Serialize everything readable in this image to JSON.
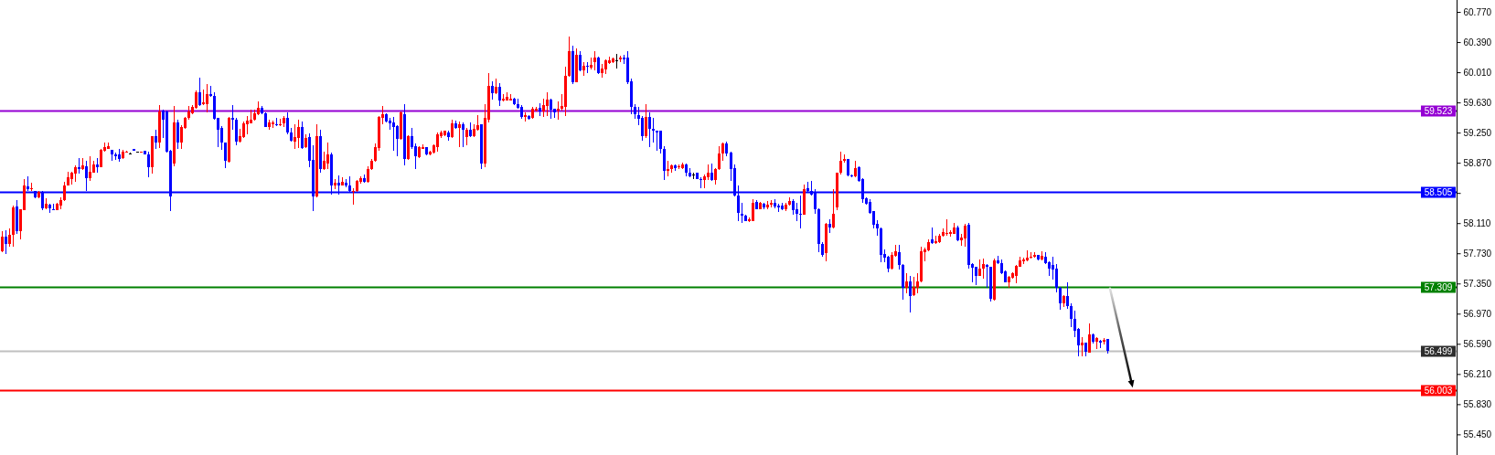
{
  "chart_data": {
    "type": "candlestick",
    "tick_labels": "y",
    "categories": [
      null,
      null,
      null,
      null,
      null,
      null,
      null,
      null,
      null,
      null,
      null,
      null,
      null,
      null,
      null,
      null,
      null,
      null,
      null,
      null,
      null,
      null,
      null,
      null,
      null,
      null,
      null,
      null,
      null,
      null,
      null,
      null,
      null,
      null,
      null,
      null,
      null,
      null,
      null,
      null,
      null,
      null,
      null,
      null,
      null,
      null,
      null,
      null,
      null,
      null,
      null,
      null,
      null,
      null,
      null,
      null,
      null,
      null,
      null,
      null,
      null,
      null,
      null,
      null,
      null,
      null,
      null,
      null,
      null,
      null,
      null,
      null,
      null,
      null,
      null,
      null,
      null,
      null,
      null,
      null,
      null,
      null,
      null,
      null,
      null,
      null,
      null,
      null,
      null,
      null,
      null,
      null,
      null,
      null,
      null,
      null,
      null,
      null,
      null,
      null,
      null,
      null,
      null,
      null,
      null,
      null,
      null,
      null,
      null,
      null,
      null,
      null,
      null,
      null,
      null,
      null,
      null,
      null,
      null,
      null,
      null,
      null,
      null,
      null,
      null,
      null,
      null,
      null,
      null,
      null,
      null,
      null,
      null,
      null,
      null,
      null,
      null,
      null,
      null,
      null,
      null,
      null,
      null,
      null,
      null,
      null,
      null,
      null,
      null,
      null,
      null,
      null,
      null,
      null,
      null,
      null,
      null,
      null,
      null,
      null,
      null,
      null,
      null,
      null,
      null,
      null,
      null,
      null,
      null,
      null,
      null,
      null,
      null,
      null,
      null,
      null,
      null,
      null,
      null,
      null,
      null,
      null,
      null,
      null,
      null,
      null,
      null,
      null,
      null,
      null,
      null,
      null,
      null,
      null,
      null,
      null,
      null,
      null,
      null,
      null,
      null,
      null,
      null,
      null,
      null,
      null,
      null,
      null,
      null,
      null,
      null,
      null,
      null,
      null,
      null,
      null,
      null,
      null,
      null,
      null,
      null,
      null,
      null,
      null,
      null,
      null,
      null,
      null,
      null,
      null,
      null,
      null,
      null,
      null,
      null,
      null,
      null,
      null,
      null,
      null,
      null,
      null,
      null,
      null,
      null,
      null,
      null,
      null,
      null,
      null,
      null,
      null,
      null,
      null,
      null,
      null,
      null,
      null,
      null,
      null,
      null,
      null,
      null,
      null,
      null,
      null,
      null,
      null,
      null,
      null,
      null,
      null,
      null,
      null,
      null,
      null,
      null,
      null,
      null,
      null,
      null,
      null,
      null,
      null,
      null,
      null,
      null,
      null,
      null,
      null,
      null,
      null,
      null,
      null,
      null,
      null,
      null,
      null,
      null,
      null,
      null,
      null,
      null,
      null,
      null,
      null,
      null,
      null,
      null,
      null,
      null,
      null,
      null,
      null,
      null,
      null,
      null,
      null,
      null,
      null,
      null,
      null,
      null,
      null,
      null,
      null,
      null,
      null,
      null,
      null,
      null,
      null,
      null,
      null,
      null,
      null,
      null,
      null,
      null,
      null,
      null,
      null,
      null,
      null,
      null,
      null,
      null,
      null,
      null,
      null,
      null,
      null,
      null,
      null,
      null,
      null,
      null,
      null,
      null,
      null,
      null,
      null,
      null,
      null,
      null,
      null,
      null,
      null,
      null,
      null,
      null,
      null,
      null,
      null,
      null,
      null,
      null,
      null,
      null,
      null,
      null,
      null,
      null,
      null,
      null,
      null,
      null,
      null,
      null,
      null,
      null,
      null,
      null,
      null,
      null,
      null,
      null,
      null
    ],
    "ohlc": [
      [
        57.76,
        58.01,
        57.74,
        57.94
      ],
      [
        57.94,
        58.02,
        57.72,
        57.85
      ],
      [
        57.85,
        58.04,
        57.81,
        57.96
      ],
      [
        57.96,
        58.33,
        57.81,
        58.31
      ],
      [
        58.32,
        58.4,
        57.97,
        58.01
      ],
      [
        58.01,
        58.29,
        57.91,
        58.28
      ],
      [
        58.27,
        58.66,
        58.27,
        58.58
      ],
      [
        58.57,
        58.7,
        58.52,
        58.54
      ],
      [
        58.54,
        58.62,
        58.52,
        58.55
      ],
      [
        58.52,
        58.52,
        58.42,
        58.44
      ],
      [
        58.43,
        58.52,
        58.42,
        58.5
      ],
      [
        58.5,
        58.51,
        58.27,
        58.3
      ],
      [
        58.3,
        58.42,
        58.29,
        58.35
      ],
      [
        58.34,
        58.35,
        58.24,
        58.3
      ],
      [
        58.29,
        58.35,
        58.27,
        58.27
      ],
      [
        58.27,
        58.36,
        58.27,
        58.35
      ],
      [
        58.33,
        58.43,
        58.28,
        58.4
      ],
      [
        58.4,
        58.63,
        58.39,
        58.59
      ],
      [
        58.59,
        58.76,
        58.58,
        58.69
      ],
      [
        58.67,
        58.76,
        58.6,
        58.75
      ],
      [
        58.73,
        58.84,
        58.63,
        58.82
      ],
      [
        58.82,
        58.93,
        58.73,
        58.79
      ],
      [
        58.79,
        58.93,
        58.78,
        58.84
      ],
      [
        58.83,
        58.9,
        58.51,
        58.68
      ],
      [
        58.68,
        58.95,
        58.64,
        58.76
      ],
      [
        58.75,
        58.89,
        58.74,
        58.85
      ],
      [
        58.85,
        58.93,
        58.75,
        58.82
      ],
      [
        58.82,
        59.04,
        58.81,
        59.03
      ],
      [
        59.02,
        59.13,
        59.01,
        59.07
      ],
      [
        59.05,
        59.12,
        59.04,
        59.08
      ],
      [
        59.03,
        59.03,
        58.9,
        58.97
      ],
      [
        58.97,
        59.0,
        58.91,
        58.95
      ],
      [
        58.97,
        59.04,
        58.88,
        58.92
      ],
      [
        58.93,
        59.03,
        58.92,
        59.01
      ],
      [
        59.0,
        59.02,
        59.0,
        59.01
      ],
      [
        58.99,
        59.0,
        58.98,
        58.99
      ],
      [
        59.04,
        59.04,
        59.02,
        59.02
      ],
      [
        59.01,
        59.01,
        59.0,
        59.01
      ],
      [
        59.0,
        59.01,
        59.0,
        59.01
      ],
      [
        59.02,
        59.02,
        58.98,
        58.98
      ],
      [
        58.98,
        59.01,
        58.69,
        58.82
      ],
      [
        58.81,
        59.21,
        58.73,
        59.2
      ],
      [
        59.2,
        59.29,
        59.04,
        59.13
      ],
      [
        59.12,
        59.6,
        59.06,
        59.52
      ],
      [
        59.53,
        59.54,
        59.18,
        59.41
      ],
      [
        59.52,
        59.53,
        59.0,
        59.01
      ],
      [
        59.02,
        59.03,
        58.26,
        58.45
      ],
      [
        58.86,
        59.59,
        58.83,
        59.38
      ],
      [
        59.38,
        59.41,
        59.04,
        59.13
      ],
      [
        59.13,
        59.34,
        59.04,
        59.32
      ],
      [
        59.31,
        59.45,
        59.3,
        59.44
      ],
      [
        59.43,
        59.58,
        59.41,
        59.52
      ],
      [
        59.49,
        59.6,
        59.48,
        59.57
      ],
      [
        59.56,
        59.78,
        59.55,
        59.76
      ],
      [
        59.76,
        59.94,
        59.59,
        59.6
      ],
      [
        59.61,
        59.79,
        59.6,
        59.63
      ],
      [
        59.61,
        59.86,
        59.51,
        59.73
      ],
      [
        59.73,
        59.84,
        59.7,
        59.71
      ],
      [
        59.71,
        59.76,
        59.41,
        59.42
      ],
      [
        59.43,
        59.44,
        59.07,
        59.29
      ],
      [
        59.31,
        59.33,
        59.03,
        59.12
      ],
      [
        59.13,
        59.13,
        58.8,
        58.9
      ],
      [
        58.88,
        59.45,
        58.87,
        59.43
      ],
      [
        59.44,
        59.6,
        59.29,
        59.41
      ],
      [
        59.41,
        59.44,
        59.09,
        59.14
      ],
      [
        59.14,
        59.3,
        59.13,
        59.2
      ],
      [
        59.19,
        59.39,
        59.18,
        59.37
      ],
      [
        59.36,
        59.46,
        59.23,
        59.4
      ],
      [
        59.37,
        59.54,
        59.37,
        59.41
      ],
      [
        59.41,
        59.54,
        59.4,
        59.49
      ],
      [
        59.48,
        59.64,
        59.47,
        59.56
      ],
      [
        59.56,
        59.58,
        59.48,
        59.49
      ],
      [
        59.49,
        59.5,
        59.32,
        59.32
      ],
      [
        59.32,
        59.41,
        59.29,
        59.38
      ],
      [
        59.36,
        59.4,
        59.31,
        59.38
      ],
      [
        59.36,
        59.43,
        59.33,
        59.34
      ],
      [
        59.34,
        59.42,
        59.33,
        59.36
      ],
      [
        59.37,
        59.46,
        59.32,
        59.43
      ],
      [
        59.43,
        59.51,
        59.23,
        59.25
      ],
      [
        59.25,
        59.31,
        59.14,
        59.15
      ],
      [
        59.14,
        59.35,
        59.05,
        59.19
      ],
      [
        59.18,
        59.41,
        59.06,
        59.32
      ],
      [
        59.32,
        59.39,
        59.05,
        59.06
      ],
      [
        59.07,
        59.23,
        59.06,
        59.18
      ],
      [
        59.19,
        59.24,
        58.82,
        58.9
      ],
      [
        58.91,
        59.09,
        58.26,
        58.45
      ],
      [
        58.45,
        59.36,
        58.43,
        59.2
      ],
      [
        59.2,
        59.29,
        58.75,
        58.79
      ],
      [
        58.79,
        59.01,
        58.78,
        58.89
      ],
      [
        58.86,
        59.13,
        58.79,
        58.98
      ],
      [
        58.98,
        59.0,
        58.47,
        58.59
      ],
      [
        58.59,
        58.67,
        58.54,
        58.62
      ],
      [
        58.62,
        58.71,
        58.47,
        58.58
      ],
      [
        58.59,
        58.69,
        58.58,
        58.63
      ],
      [
        58.62,
        58.67,
        58.56,
        58.58
      ],
      [
        58.58,
        58.7,
        58.5,
        58.51
      ],
      [
        58.5,
        58.55,
        58.34,
        58.52
      ],
      [
        58.51,
        58.65,
        58.5,
        58.64
      ],
      [
        58.63,
        58.7,
        58.61,
        58.68
      ],
      [
        58.68,
        58.72,
        58.62,
        58.63
      ],
      [
        58.63,
        58.83,
        58.62,
        58.79
      ],
      [
        58.79,
        58.92,
        58.78,
        58.9
      ],
      [
        58.89,
        59.11,
        58.88,
        59.07
      ],
      [
        59.06,
        59.46,
        59.02,
        59.45
      ],
      [
        59.44,
        59.59,
        59.36,
        59.48
      ],
      [
        59.48,
        59.49,
        59.38,
        59.39
      ],
      [
        59.4,
        59.43,
        59.29,
        59.37
      ],
      [
        59.38,
        59.45,
        59.02,
        59.32
      ],
      [
        59.33,
        59.34,
        58.95,
        59.17
      ],
      [
        59.17,
        59.52,
        59.16,
        59.5
      ],
      [
        59.48,
        59.61,
        58.84,
        58.92
      ],
      [
        58.92,
        59.22,
        58.91,
        59.21
      ],
      [
        59.21,
        59.31,
        59.04,
        59.07
      ],
      [
        59.08,
        59.11,
        58.79,
        58.95
      ],
      [
        58.94,
        59.08,
        58.93,
        59.07
      ],
      [
        59.05,
        59.1,
        59.04,
        59.07
      ],
      [
        59.07,
        59.07,
        58.96,
        58.98
      ],
      [
        58.97,
        59.02,
        58.96,
        59.01
      ],
      [
        59.0,
        59.1,
        58.99,
        59.09
      ],
      [
        59.07,
        59.25,
        59.01,
        59.23
      ],
      [
        59.21,
        59.27,
        59.18,
        59.25
      ],
      [
        59.22,
        59.27,
        59.21,
        59.27
      ],
      [
        59.25,
        59.27,
        59.15,
        59.19
      ],
      [
        59.19,
        59.41,
        59.18,
        59.37
      ],
      [
        59.37,
        59.4,
        59.3,
        59.31
      ],
      [
        59.31,
        59.39,
        59.07,
        59.35
      ],
      [
        59.36,
        59.38,
        59.07,
        59.29
      ],
      [
        59.19,
        59.31,
        59.09,
        59.29
      ],
      [
        59.29,
        59.38,
        59.19,
        59.2
      ],
      [
        59.2,
        59.35,
        59.19,
        59.3
      ],
      [
        59.29,
        59.47,
        59.27,
        59.34
      ],
      [
        59.35,
        59.36,
        58.79,
        58.86
      ],
      [
        58.86,
        59.61,
        58.82,
        59.43
      ],
      [
        59.41,
        60.0,
        59.38,
        59.84
      ],
      [
        59.84,
        59.9,
        59.67,
        59.75
      ],
      [
        59.75,
        59.93,
        59.73,
        59.83
      ],
      [
        59.83,
        59.87,
        59.58,
        59.66
      ],
      [
        59.66,
        59.73,
        59.64,
        59.68
      ],
      [
        59.66,
        59.76,
        59.65,
        59.7
      ],
      [
        59.66,
        59.73,
        59.65,
        59.68
      ],
      [
        59.68,
        59.69,
        59.6,
        59.61
      ],
      [
        59.61,
        59.68,
        59.55,
        59.56
      ],
      [
        59.57,
        59.6,
        59.42,
        59.45
      ],
      [
        59.45,
        59.5,
        59.39,
        59.47
      ],
      [
        59.46,
        59.47,
        59.41,
        59.42
      ],
      [
        59.43,
        59.57,
        59.42,
        59.55
      ],
      [
        59.53,
        59.57,
        59.52,
        59.55
      ],
      [
        59.56,
        59.62,
        59.46,
        59.52
      ],
      [
        59.52,
        59.68,
        59.45,
        59.6
      ],
      [
        59.59,
        59.76,
        59.46,
        59.67
      ],
      [
        59.67,
        59.68,
        59.42,
        59.54
      ],
      [
        59.55,
        59.55,
        59.43,
        59.51
      ],
      [
        59.53,
        59.64,
        59.41,
        59.55
      ],
      [
        59.55,
        59.73,
        59.53,
        59.59
      ],
      [
        59.57,
        60.08,
        59.46,
        59.97
      ],
      [
        59.96,
        60.46,
        59.95,
        60.27
      ],
      [
        60.27,
        60.34,
        59.86,
        59.89
      ],
      [
        59.89,
        60.31,
        59.88,
        60.23
      ],
      [
        60.23,
        60.28,
        60.02,
        60.03
      ],
      [
        60.03,
        60.14,
        59.96,
        60.09
      ],
      [
        60.09,
        60.14,
        60.0,
        60.08
      ],
      [
        60.07,
        60.19,
        60.05,
        60.1
      ],
      [
        60.14,
        60.27,
        60.03,
        60.2
      ],
      [
        60.2,
        60.21,
        59.99,
        60.0
      ],
      [
        60.0,
        60.11,
        59.94,
        60.06
      ],
      [
        60.05,
        60.17,
        59.99,
        60.16
      ],
      [
        60.13,
        60.21,
        60.12,
        60.16
      ],
      [
        60.14,
        60.2,
        60.13,
        60.18
      ],
      [
        60.16,
        60.24,
        60.06,
        60.16
      ],
      [
        60.17,
        60.22,
        60.14,
        60.19
      ],
      [
        60.19,
        60.23,
        60.12,
        60.17
      ],
      [
        60.19,
        60.28,
        59.86,
        59.88
      ],
      [
        59.9,
        59.93,
        59.48,
        59.57
      ],
      [
        59.57,
        59.61,
        59.42,
        59.48
      ],
      [
        59.47,
        59.57,
        59.34,
        59.42
      ],
      [
        59.43,
        59.46,
        59.15,
        59.2
      ],
      [
        59.2,
        59.61,
        59.18,
        59.45
      ],
      [
        59.45,
        59.5,
        59.07,
        59.3
      ],
      [
        59.3,
        59.43,
        59.13,
        59.28
      ],
      [
        59.28,
        59.28,
        59.02,
        59.25
      ],
      [
        59.27,
        59.27,
        58.99,
        59.05
      ],
      [
        59.05,
        59.08,
        58.65,
        58.77
      ],
      [
        58.77,
        58.89,
        58.7,
        58.79
      ],
      [
        58.79,
        58.85,
        58.74,
        58.84
      ],
      [
        58.84,
        58.85,
        58.77,
        58.8
      ],
      [
        58.81,
        58.85,
        58.79,
        58.83
      ],
      [
        58.8,
        58.87,
        58.79,
        58.85
      ],
      [
        58.85,
        58.86,
        58.7,
        58.74
      ],
      [
        58.74,
        58.8,
        58.69,
        58.7
      ],
      [
        58.72,
        58.74,
        58.66,
        58.72
      ],
      [
        58.74,
        58.74,
        58.66,
        58.67
      ],
      [
        58.67,
        58.69,
        58.55,
        58.65
      ],
      [
        58.65,
        58.72,
        58.55,
        58.7
      ],
      [
        58.69,
        58.85,
        58.65,
        58.75
      ],
      [
        58.75,
        58.86,
        58.64,
        58.65
      ],
      [
        58.65,
        58.8,
        58.6,
        58.79
      ],
      [
        58.79,
        59.08,
        58.78,
        58.99
      ],
      [
        58.99,
        59.12,
        58.9,
        59.11
      ],
      [
        59.11,
        59.14,
        58.95,
        58.99
      ],
      [
        59.0,
        59.01,
        58.64,
        58.79
      ],
      [
        58.8,
        58.85,
        58.45,
        58.46
      ],
      [
        58.46,
        58.59,
        58.13,
        58.24
      ],
      [
        58.23,
        58.36,
        58.11,
        58.2
      ],
      [
        58.21,
        58.22,
        58.13,
        58.14
      ],
      [
        58.14,
        58.18,
        58.12,
        58.16
      ],
      [
        58.14,
        58.41,
        58.13,
        58.36
      ],
      [
        58.38,
        58.4,
        58.28,
        58.29
      ],
      [
        58.29,
        58.38,
        58.28,
        58.36
      ],
      [
        58.35,
        58.37,
        58.28,
        58.31
      ],
      [
        58.31,
        58.39,
        58.29,
        58.34
      ],
      [
        58.34,
        58.4,
        58.31,
        58.36
      ],
      [
        58.36,
        58.41,
        58.3,
        58.32
      ],
      [
        58.33,
        58.35,
        58.25,
        58.31
      ],
      [
        58.33,
        58.37,
        58.27,
        58.28
      ],
      [
        58.29,
        58.37,
        58.26,
        58.34
      ],
      [
        58.34,
        58.43,
        58.33,
        58.39
      ],
      [
        58.39,
        58.41,
        58.22,
        58.27
      ],
      [
        58.28,
        58.37,
        58.13,
        58.23
      ],
      [
        58.23,
        58.46,
        58.04,
        58.22
      ],
      [
        58.22,
        58.6,
        58.22,
        58.54
      ],
      [
        58.55,
        58.63,
        58.49,
        58.51
      ],
      [
        58.51,
        58.64,
        58.46,
        58.47
      ],
      [
        58.49,
        58.54,
        58.23,
        58.28
      ],
      [
        58.29,
        58.3,
        57.74,
        57.85
      ],
      [
        57.85,
        57.87,
        57.69,
        57.71
      ],
      [
        57.73,
        58.11,
        57.63,
        58.1
      ],
      [
        58.1,
        58.16,
        57.99,
        58.06
      ],
      [
        58.06,
        58.54,
        58.04,
        58.23
      ],
      [
        58.31,
        58.75,
        58.27,
        58.75
      ],
      [
        58.74,
        59.01,
        58.72,
        58.9
      ],
      [
        58.89,
        58.97,
        58.87,
        58.92
      ],
      [
        58.92,
        58.92,
        58.7,
        58.71
      ],
      [
        58.71,
        58.72,
        58.69,
        58.7
      ],
      [
        58.7,
        58.9,
        58.69,
        58.8
      ],
      [
        58.81,
        58.83,
        58.63,
        58.64
      ],
      [
        58.67,
        58.68,
        58.37,
        58.41
      ],
      [
        58.42,
        58.43,
        58.34,
        58.35
      ],
      [
        58.38,
        58.41,
        58.23,
        58.24
      ],
      [
        58.26,
        58.26,
        58.04,
        58.09
      ],
      [
        58.1,
        58.15,
        57.95,
        58.04
      ],
      [
        58.04,
        58.06,
        57.62,
        57.71
      ],
      [
        57.72,
        57.78,
        57.62,
        57.68
      ],
      [
        57.69,
        57.7,
        57.49,
        57.54
      ],
      [
        57.54,
        57.74,
        57.53,
        57.71
      ],
      [
        57.7,
        57.84,
        57.69,
        57.76
      ],
      [
        57.74,
        57.84,
        57.53,
        57.58
      ],
      [
        57.58,
        57.59,
        57.15,
        57.29
      ],
      [
        57.29,
        57.48,
        57.23,
        57.38
      ],
      [
        57.38,
        57.45,
        56.98,
        57.19
      ],
      [
        57.2,
        57.43,
        57.19,
        57.31
      ],
      [
        57.29,
        57.48,
        57.23,
        57.38
      ],
      [
        57.38,
        57.81,
        57.37,
        57.76
      ],
      [
        57.75,
        57.8,
        57.63,
        57.78
      ],
      [
        57.77,
        57.9,
        57.76,
        57.87
      ],
      [
        57.9,
        58.06,
        57.85,
        57.86
      ],
      [
        57.86,
        57.95,
        57.85,
        57.88
      ],
      [
        57.87,
        57.97,
        57.86,
        57.95
      ],
      [
        57.95,
        58.04,
        57.94,
        58.0
      ],
      [
        57.98,
        58.16,
        57.95,
        57.99
      ],
      [
        57.97,
        58.02,
        57.94,
        58.0
      ],
      [
        57.98,
        58.11,
        57.97,
        58.06
      ],
      [
        58.06,
        58.08,
        57.88,
        57.89
      ],
      [
        57.89,
        57.98,
        57.82,
        57.93
      ],
      [
        57.92,
        58.1,
        57.81,
        58.08
      ],
      [
        58.09,
        58.11,
        57.54,
        57.58
      ],
      [
        57.59,
        57.61,
        57.37,
        57.55
      ],
      [
        57.56,
        57.56,
        57.33,
        57.45
      ],
      [
        57.45,
        57.65,
        57.44,
        57.54
      ],
      [
        57.54,
        57.66,
        57.41,
        57.59
      ],
      [
        57.58,
        57.59,
        57.3,
        57.56
      ],
      [
        57.56,
        57.56,
        57.12,
        57.16
      ],
      [
        57.15,
        57.66,
        57.14,
        57.64
      ],
      [
        57.64,
        57.7,
        57.59,
        57.61
      ],
      [
        57.61,
        57.65,
        57.47,
        57.48
      ],
      [
        57.5,
        57.51,
        57.36,
        57.37
      ],
      [
        57.37,
        57.44,
        57.3,
        57.43
      ],
      [
        57.42,
        57.49,
        57.41,
        57.48
      ],
      [
        57.45,
        57.58,
        57.35,
        57.57
      ],
      [
        57.56,
        57.69,
        57.56,
        57.64
      ],
      [
        57.63,
        57.68,
        57.6,
        57.65
      ],
      [
        57.64,
        57.77,
        57.63,
        57.67
      ],
      [
        57.67,
        57.75,
        57.66,
        57.69
      ],
      [
        57.69,
        57.74,
        57.68,
        57.71
      ],
      [
        57.71,
        57.71,
        57.64,
        57.65
      ],
      [
        57.65,
        57.76,
        57.64,
        57.7
      ],
      [
        57.69,
        57.75,
        57.6,
        57.61
      ],
      [
        57.62,
        57.63,
        57.44,
        57.54
      ],
      [
        57.58,
        57.69,
        57.4,
        57.52
      ],
      [
        57.54,
        57.59,
        57.24,
        57.29
      ],
      [
        57.3,
        57.31,
        57.02,
        57.1
      ],
      [
        57.1,
        57.2,
        57.05,
        57.19
      ],
      [
        57.19,
        57.37,
        57.03,
        57.06
      ],
      [
        57.06,
        57.1,
        56.8,
        56.9
      ],
      [
        56.91,
        57.01,
        56.68,
        56.76
      ],
      [
        56.78,
        56.79,
        56.43,
        56.57
      ],
      [
        56.57,
        56.67,
        56.43,
        56.6
      ],
      [
        56.6,
        56.61,
        56.43,
        56.49
      ],
      [
        56.48,
        56.85,
        56.48,
        56.71
      ],
      [
        56.71,
        56.72,
        56.59,
        56.62
      ],
      [
        56.62,
        56.68,
        56.53,
        56.66
      ],
      [
        56.63,
        56.64,
        56.54,
        56.6
      ],
      [
        56.62,
        56.66,
        56.58,
        56.64
      ],
      [
        56.65,
        56.65,
        56.47,
        56.5
      ],
      null,
      null,
      null,
      null,
      null,
      null,
      null,
      null,
      null,
      null,
      null,
      null,
      null,
      null,
      null,
      null,
      null,
      null,
      null,
      null,
      null,
      null,
      null,
      null,
      null,
      null,
      null,
      null,
      null,
      null,
      null,
      null,
      null,
      null,
      null,
      null,
      null,
      null,
      null,
      null,
      null,
      null,
      null,
      null,
      null,
      null,
      null,
      null,
      null,
      null,
      null,
      null,
      null,
      null,
      null,
      null,
      null,
      null,
      null,
      null,
      null,
      null,
      null,
      null,
      null,
      null,
      null,
      null,
      null,
      null,
      null,
      null,
      null,
      null,
      null,
      null,
      null,
      null,
      null,
      null,
      null,
      null,
      null,
      null,
      null,
      null,
      null,
      null,
      null,
      null,
      null,
      null,
      null,
      null,
      null
    ],
    "colors": [
      "#ff0000",
      "#0000ff",
      "#ff0000",
      "#ff0000",
      "#0000ff",
      "#ff0000",
      "#ff0000",
      "#0000ff",
      "#ff0000",
      "#0000ff",
      "#ff0000",
      "#0000ff",
      "#ff0000",
      "#0000ff",
      "#0000ff",
      "#ff0000",
      "#ff0000",
      "#ff0000",
      "#ff0000",
      "#ff0000",
      "#ff0000",
      "#0000ff",
      "#ff0000",
      "#0000ff",
      "#ff0000",
      "#ff0000",
      "#0000ff",
      "#ff0000",
      "#ff0000",
      "#ff0000",
      "#0000ff",
      "#0000ff",
      "#0000ff",
      "#ff0000",
      "#ff0000",
      "#000000",
      "#0000ff",
      "#000000",
      "#ff0000",
      "#0000ff",
      "#0000ff",
      "#ff0000",
      "#0000ff",
      "#ff0000",
      "#0000ff",
      "#0000ff",
      "#0000ff",
      "#ff0000",
      "#0000ff",
      "#ff0000",
      "#ff0000",
      "#ff0000",
      "#ff0000",
      "#ff0000",
      "#0000ff",
      "#ff0000",
      "#ff0000",
      "#0000ff",
      "#0000ff",
      "#0000ff",
      "#0000ff",
      "#0000ff",
      "#ff0000",
      "#0000ff",
      "#0000ff",
      "#ff0000",
      "#ff0000",
      "#ff0000",
      "#ff0000",
      "#ff0000",
      "#ff0000",
      "#0000ff",
      "#0000ff",
      "#ff0000",
      "#ff0000",
      "#0000ff",
      "#ff0000",
      "#ff0000",
      "#0000ff",
      "#0000ff",
      "#ff0000",
      "#ff0000",
      "#0000ff",
      "#ff0000",
      "#0000ff",
      "#0000ff",
      "#ff0000",
      "#0000ff",
      "#ff0000",
      "#ff0000",
      "#0000ff",
      "#ff0000",
      "#0000ff",
      "#ff0000",
      "#0000ff",
      "#0000ff",
      "#ff0000",
      "#ff0000",
      "#ff0000",
      "#0000ff",
      "#ff0000",
      "#ff0000",
      "#ff0000",
      "#ff0000",
      "#ff0000",
      "#0000ff",
      "#0000ff",
      "#0000ff",
      "#0000ff",
      "#ff0000",
      "#0000ff",
      "#ff0000",
      "#0000ff",
      "#0000ff",
      "#ff0000",
      "#ff0000",
      "#0000ff",
      "#ff0000",
      "#ff0000",
      "#ff0000",
      "#ff0000",
      "#ff0000",
      "#0000ff",
      "#ff0000",
      "#0000ff",
      "#ff0000",
      "#0000ff",
      "#ff0000",
      "#0000ff",
      "#ff0000",
      "#ff0000",
      "#0000ff",
      "#ff0000",
      "#ff0000",
      "#0000ff",
      "#ff0000",
      "#0000ff",
      "#ff0000",
      "#ff0000",
      "#ff0000",
      "#0000ff",
      "#0000ff",
      "#0000ff",
      "#ff0000",
      "#0000ff",
      "#ff0000",
      "#ff0000",
      "#0000ff",
      "#ff0000",
      "#ff0000",
      "#0000ff",
      "#0000ff",
      "#ff0000",
      "#ff0000",
      "#ff0000",
      "#ff0000",
      "#0000ff",
      "#ff0000",
      "#0000ff",
      "#ff0000",
      "#0000ff",
      "#ff0000",
      "#ff0000",
      "#0000ff",
      "#ff0000",
      "#ff0000",
      "#ff0000",
      "#ff0000",
      "#000000",
      "#ff0000",
      "#0000ff",
      "#0000ff",
      "#0000ff",
      "#0000ff",
      "#0000ff",
      "#0000ff",
      "#ff0000",
      "#0000ff",
      "#0000ff",
      "#0000ff",
      "#0000ff",
      "#0000ff",
      "#ff0000",
      "#ff0000",
      "#0000ff",
      "#ff0000",
      "#ff0000",
      "#0000ff",
      "#0000ff",
      "#000000",
      "#0000ff",
      "#0000ff",
      "#ff0000",
      "#ff0000",
      "#0000ff",
      "#ff0000",
      "#ff0000",
      "#ff0000",
      "#0000ff",
      "#0000ff",
      "#0000ff",
      "#0000ff",
      "#0000ff",
      "#0000ff",
      "#ff0000",
      "#ff0000",
      "#0000ff",
      "#ff0000",
      "#0000ff",
      "#ff0000",
      "#ff0000",
      "#0000ff",
      "#0000ff",
      "#0000ff",
      "#ff0000",
      "#ff0000",
      "#0000ff",
      "#0000ff",
      "#0000ff",
      "#ff0000",
      "#0000ff",
      "#0000ff",
      "#0000ff",
      "#0000ff",
      "#0000ff",
      "#ff0000",
      "#0000ff",
      "#ff0000",
      "#ff0000",
      "#ff0000",
      "#ff0000",
      "#0000ff",
      "#0000ff",
      "#ff0000",
      "#0000ff",
      "#0000ff",
      "#0000ff",
      "#0000ff",
      "#0000ff",
      "#0000ff",
      "#0000ff",
      "#0000ff",
      "#0000ff",
      "#ff0000",
      "#ff0000",
      "#0000ff",
      "#0000ff",
      "#ff0000",
      "#0000ff",
      "#ff0000",
      "#ff0000",
      "#ff0000",
      "#ff0000",
      "#ff0000",
      "#0000ff",
      "#ff0000",
      "#ff0000",
      "#ff0000",
      "#ff0000",
      "#ff0000",
      "#ff0000",
      "#0000ff",
      "#ff0000",
      "#ff0000",
      "#0000ff",
      "#0000ff",
      "#0000ff",
      "#ff0000",
      "#ff0000",
      "#0000ff",
      "#0000ff",
      "#ff0000",
      "#0000ff",
      "#0000ff",
      "#0000ff",
      "#ff0000",
      "#ff0000",
      "#ff0000",
      "#ff0000",
      "#ff0000",
      "#ff0000",
      "#ff0000",
      "#ff0000",
      "#0000ff",
      "#ff0000",
      "#0000ff",
      "#0000ff",
      "#0000ff",
      "#0000ff",
      "#0000ff",
      "#ff0000",
      "#0000ff",
      "#0000ff",
      "#0000ff",
      "#0000ff",
      "#ff0000",
      "#0000ff",
      "#ff0000",
      "#0000ff",
      "#ff0000",
      "#0000ff",
      "#ff0000",
      "#0000ff",
      null,
      null,
      null,
      null,
      null,
      null,
      null,
      null,
      null,
      null,
      null,
      null,
      null,
      null,
      null,
      null,
      null,
      null,
      null,
      null,
      null,
      null,
      null,
      null,
      null,
      null,
      null,
      null,
      null,
      null,
      null,
      null,
      null,
      null,
      null,
      null,
      null,
      null,
      null,
      null,
      null,
      null,
      null,
      null,
      null,
      null,
      null,
      null,
      null,
      null,
      null,
      null,
      null,
      null,
      null,
      null,
      null,
      null,
      null,
      null,
      null,
      null,
      null,
      null,
      null,
      null,
      null,
      null,
      null,
      null,
      null,
      null,
      null,
      null,
      null,
      null,
      null,
      null,
      null,
      null,
      null,
      null,
      null,
      null,
      null,
      null,
      null,
      null,
      null,
      null,
      null,
      null,
      null,
      null,
      null
    ],
    "ylim": [
      55.19,
      60.92
    ],
    "yticks": [
      {
        "value": 60.77,
        "label": "60.770"
      },
      {
        "value": 60.39,
        "label": "60.390"
      },
      {
        "value": 60.01,
        "label": "60.010"
      },
      {
        "value": 59.63,
        "label": "59.630"
      },
      {
        "value": 59.25,
        "label": "59.250"
      },
      {
        "value": 58.87,
        "label": "58.870"
      },
      {
        "value": 58.49,
        "label": null
      },
      {
        "value": 58.11,
        "label": "58.110"
      },
      {
        "value": 57.73,
        "label": "57.730"
      },
      {
        "value": 57.35,
        "label": "57.350"
      },
      {
        "value": 56.97,
        "label": "56.970"
      },
      {
        "value": 56.59,
        "label": "56.590"
      },
      {
        "value": 56.21,
        "label": "56.210"
      },
      {
        "value": 55.83,
        "label": "55.830"
      },
      {
        "value": 55.45,
        "label": "55.450"
      }
    ],
    "ref_lines": [
      {
        "axis": "y",
        "value": 59.523,
        "label": "59.523",
        "color": "#9400d3"
      },
      {
        "axis": "y",
        "value": 58.505,
        "label": "58.505",
        "color": "#0000ff"
      },
      {
        "axis": "y",
        "value": 57.309,
        "label": "57.309",
        "color": "#008000"
      },
      {
        "axis": "y",
        "value": 56.499,
        "label": "56.499",
        "color": "#c0c0c0"
      },
      {
        "axis": "y",
        "value": 56.003,
        "label": "56.003",
        "color": "#ff0000"
      }
    ]
  }
}
